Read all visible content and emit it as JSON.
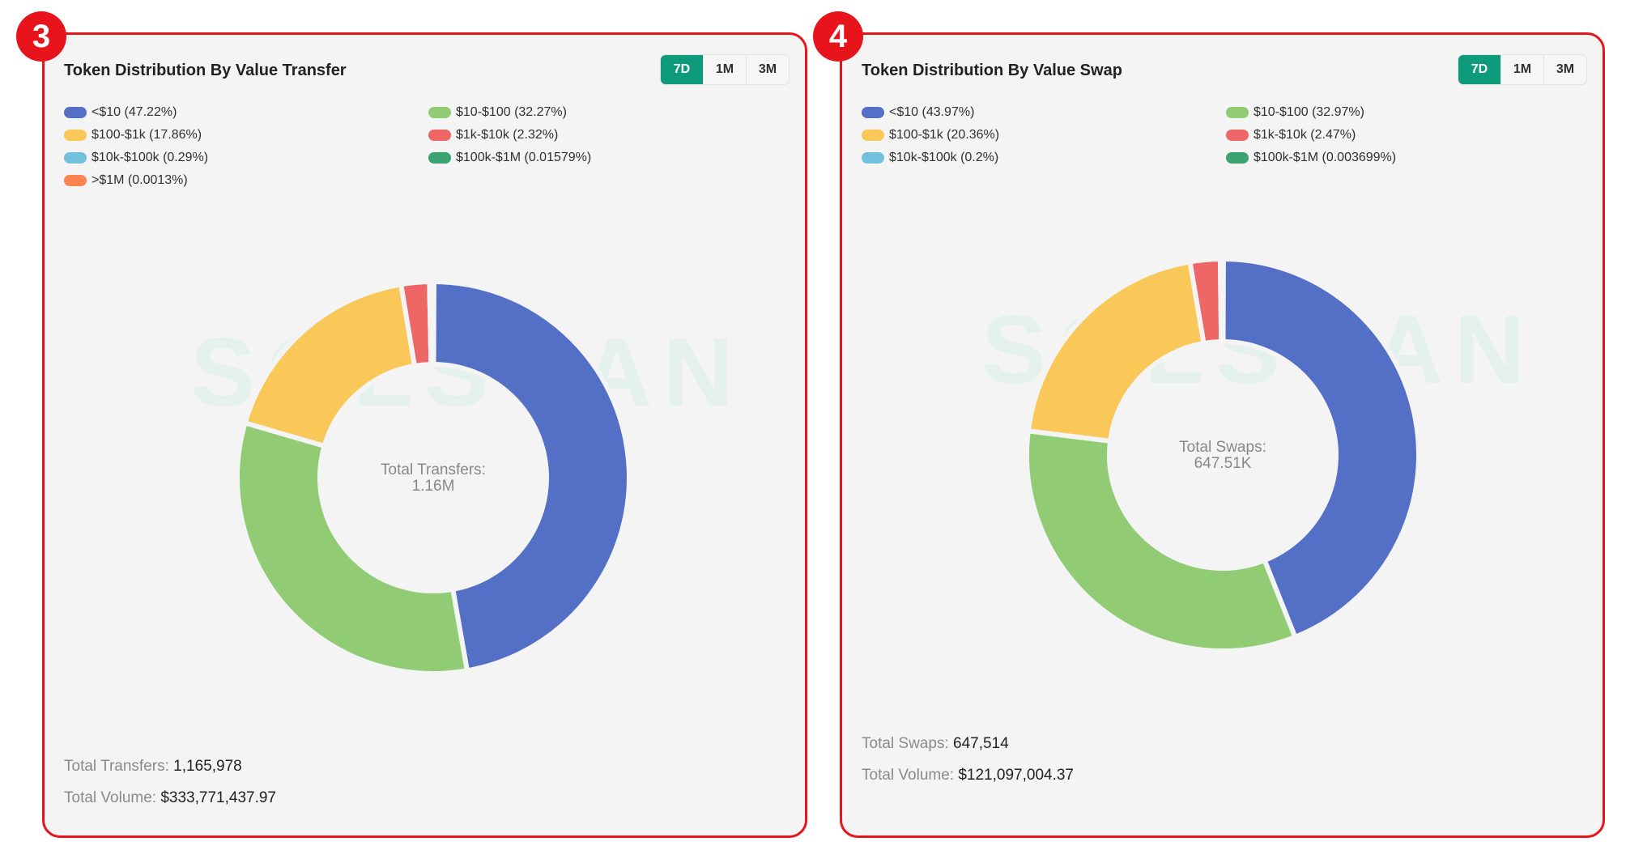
{
  "badges": {
    "left": "3",
    "right": "4"
  },
  "time_ranges": [
    "7D",
    "1M",
    "3M"
  ],
  "transfer_panel": {
    "title": "Token Distribution By Value Transfer",
    "selected_range": "7D",
    "watermark": "SOLSCAN",
    "center_label": "Total Transfers:",
    "center_value": "1.16M",
    "stats": [
      {
        "label": "Total Transfers:",
        "value": "1,165,978"
      },
      {
        "label": "Total Volume:",
        "value": "$333,771,437.97"
      }
    ]
  },
  "swap_panel": {
    "title": "Token Distribution By Value Swap",
    "selected_range": "7D",
    "watermark": "SOLSCAN",
    "center_label": "Total Swaps:",
    "center_value": "647.51K",
    "stats": [
      {
        "label": "Total Swaps:",
        "value": "647,514"
      },
      {
        "label": "Total Volume:",
        "value": "$121,097,004.37"
      }
    ]
  },
  "chart_data": [
    {
      "type": "pie",
      "variant": "donut",
      "title": "Token Distribution By Value Transfer",
      "categories": [
        "<$10",
        "$10-$100",
        "$100-$1k",
        "$1k-$10k",
        "$10k-$100k",
        "$100k-$1M",
        ">$1M"
      ],
      "values": [
        47.22,
        32.27,
        17.86,
        2.32,
        0.29,
        0.01579,
        0.0013
      ],
      "legend_labels": [
        "<$10 (47.22%)",
        "$10-$100 (32.27%)",
        "$100-$1k (17.86%)",
        "$1k-$10k (2.32%)",
        "$10k-$100k (0.29%)",
        "$100k-$1M (0.01579%)",
        ">$1M (0.0013%)"
      ],
      "colors": [
        "#5470c6",
        "#91cc75",
        "#fac858",
        "#ee6666",
        "#73c0de",
        "#3ba272",
        "#fc8452"
      ],
      "legend_position": "top"
    },
    {
      "type": "pie",
      "variant": "donut",
      "title": "Token Distribution By Value Swap",
      "categories": [
        "<$10",
        "$10-$100",
        "$100-$1k",
        "$1k-$10k",
        "$10k-$100k",
        "$100k-$1M"
      ],
      "values": [
        43.97,
        32.97,
        20.36,
        2.47,
        0.2,
        0.003699
      ],
      "legend_labels": [
        "<$10 (43.97%)",
        "$10-$100 (32.97%)",
        "$100-$1k (20.36%)",
        "$1k-$10k (2.47%)",
        "$10k-$100k (0.2%)",
        "$100k-$1M (0.003699%)"
      ],
      "colors": [
        "#5470c6",
        "#91cc75",
        "#fac858",
        "#ee6666",
        "#73c0de",
        "#3ba272"
      ],
      "legend_position": "top"
    }
  ]
}
